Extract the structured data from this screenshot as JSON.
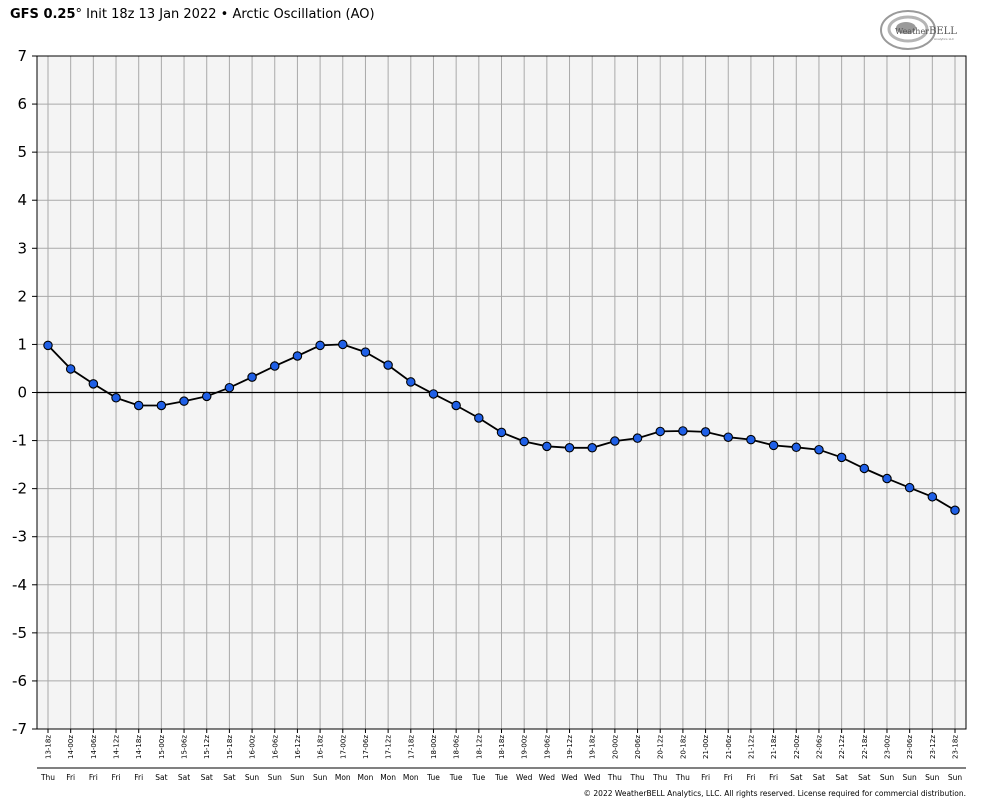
{
  "header": {
    "model": "GFS 0.25",
    "degree": "°",
    "init": " Init 18z 13 Jan 2022",
    "bullet": " • ",
    "product": "Arctic Oscillation (AO)"
  },
  "logo": {
    "text_prefix": "Weather",
    "text_suffix": "BELL",
    "subtext": "Analytics LLC"
  },
  "copyright": "© 2022 WeatherBELL Analytics, LLC. All rights reserved. License required for commercial distribution.",
  "colors": {
    "plot_bg": "#f4f4f4",
    "grid": "#a9a9a9",
    "zero_line": "#000000",
    "marker_fill": "#1f5fe6",
    "line": "#000000"
  },
  "chart_data": {
    "type": "line",
    "title": "Arctic Oscillation (AO)",
    "xlabel": "",
    "ylabel": "",
    "ylim": [
      -7,
      7
    ],
    "yticks": [
      7,
      6,
      5,
      4,
      3,
      2,
      1,
      0,
      -1,
      -2,
      -3,
      -4,
      -5,
      -6,
      -7
    ],
    "grid": true,
    "legend": "none",
    "categories": [
      "13-18z",
      "14-00z",
      "14-06z",
      "14-12z",
      "14-18z",
      "15-00z",
      "15-06z",
      "15-12z",
      "15-18z",
      "16-00z",
      "16-06z",
      "16-12z",
      "16-18z",
      "17-00z",
      "17-06z",
      "17-12z",
      "17-18z",
      "18-00z",
      "18-06z",
      "18-12z",
      "18-18z",
      "19-00z",
      "19-06z",
      "19-12z",
      "19-18z",
      "20-00z",
      "20-06z",
      "20-12z",
      "20-18z",
      "21-00z",
      "21-06z",
      "21-12z",
      "21-18z",
      "22-00z",
      "22-06z",
      "22-12z",
      "22-18z",
      "23-00z",
      "23-06z",
      "23-12z",
      "23-18z"
    ],
    "days": [
      "Thu",
      "Fri",
      "Fri",
      "Fri",
      "Fri",
      "Sat",
      "Sat",
      "Sat",
      "Sat",
      "Sun",
      "Sun",
      "Sun",
      "Sun",
      "Mon",
      "Mon",
      "Mon",
      "Mon",
      "Tue",
      "Tue",
      "Tue",
      "Tue",
      "Wed",
      "Wed",
      "Wed",
      "Wed",
      "Thu",
      "Thu",
      "Thu",
      "Thu",
      "Fri",
      "Fri",
      "Fri",
      "Fri",
      "Sat",
      "Sat",
      "Sat",
      "Sat",
      "Sun",
      "Sun",
      "Sun",
      "Sun"
    ],
    "series": [
      {
        "values": [
          0.98,
          0.49,
          0.18,
          -0.11,
          -0.27,
          -0.27,
          -0.18,
          -0.08,
          0.1,
          0.32,
          0.55,
          0.76,
          0.98,
          1.0,
          0.84,
          0.57,
          0.22,
          -0.03,
          -0.27,
          -0.53,
          -0.83,
          -1.02,
          -1.12,
          -1.15,
          -1.15,
          -1.01,
          -0.95,
          -0.81,
          -0.8,
          -0.82,
          -0.93,
          -0.98,
          -1.1,
          -1.14,
          -1.19,
          -1.35,
          -1.58,
          -1.79,
          -1.98,
          -2.17,
          -2.45
        ]
      }
    ]
  }
}
